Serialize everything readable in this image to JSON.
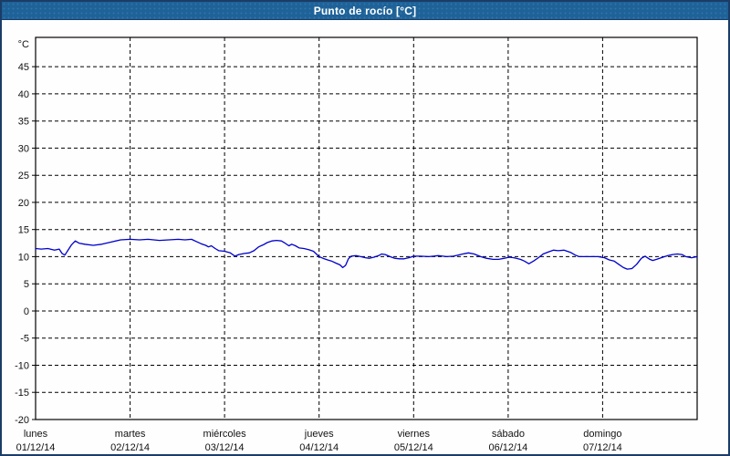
{
  "window": {
    "title": "Punto de rocío [°C]"
  },
  "colors": {
    "title_bar": "#1E6298",
    "title_text": "#FFFFFF",
    "frame_border": "#1B3C66",
    "plot_background": "#FDFEFD",
    "plot_border": "#000000",
    "grid": "#000000",
    "axis_text": "#111111",
    "series_line": "#0000CC"
  },
  "chart_data": {
    "type": "line",
    "title": "Punto de rocío [°C]",
    "unit_label": "°C",
    "ylabel": "°C",
    "ylim": [
      -20,
      50.4
    ],
    "y_ticks": [
      45,
      40,
      35,
      30,
      25,
      20,
      15,
      10,
      5,
      0,
      -5,
      -10,
      -15,
      -20
    ],
    "grid": "dashed",
    "legend_position": "none",
    "xlim_days": [
      0,
      7
    ],
    "x_categories": [
      {
        "name": "lunes",
        "date": "01/12/14"
      },
      {
        "name": "martes",
        "date": "02/12/14"
      },
      {
        "name": "miércoles",
        "date": "03/12/14"
      },
      {
        "name": "jueves",
        "date": "04/12/14"
      },
      {
        "name": "viernes",
        "date": "05/12/14"
      },
      {
        "name": "sábado",
        "date": "06/12/14"
      },
      {
        "name": "domingo",
        "date": "07/12/14"
      }
    ],
    "series": [
      {
        "name": "Punto de rocío [°C]",
        "color": "#0000CC",
        "points": [
          [
            0.0,
            11.5
          ],
          [
            0.06,
            11.4
          ],
          [
            0.13,
            11.5
          ],
          [
            0.2,
            11.2
          ],
          [
            0.25,
            11.4
          ],
          [
            0.28,
            10.6
          ],
          [
            0.31,
            10.3
          ],
          [
            0.34,
            11.1
          ],
          [
            0.38,
            12.2
          ],
          [
            0.42,
            12.9
          ],
          [
            0.46,
            12.5
          ],
          [
            0.52,
            12.3
          ],
          [
            0.61,
            12.1
          ],
          [
            0.7,
            12.3
          ],
          [
            0.8,
            12.7
          ],
          [
            0.9,
            13.1
          ],
          [
            1.0,
            13.2
          ],
          [
            1.1,
            13.1
          ],
          [
            1.19,
            13.2
          ],
          [
            1.31,
            13.0
          ],
          [
            1.41,
            13.1
          ],
          [
            1.51,
            13.2
          ],
          [
            1.58,
            13.1
          ],
          [
            1.65,
            13.2
          ],
          [
            1.7,
            12.8
          ],
          [
            1.75,
            12.4
          ],
          [
            1.8,
            12.1
          ],
          [
            1.83,
            11.8
          ],
          [
            1.86,
            12.0
          ],
          [
            1.9,
            11.5
          ],
          [
            1.94,
            11.1
          ],
          [
            2.0,
            11.0
          ],
          [
            2.06,
            10.7
          ],
          [
            2.11,
            10.1
          ],
          [
            2.15,
            10.4
          ],
          [
            2.21,
            10.6
          ],
          [
            2.26,
            10.7
          ],
          [
            2.31,
            11.1
          ],
          [
            2.36,
            11.8
          ],
          [
            2.41,
            12.2
          ],
          [
            2.45,
            12.6
          ],
          [
            2.5,
            12.9
          ],
          [
            2.55,
            13.0
          ],
          [
            2.6,
            12.9
          ],
          [
            2.64,
            12.5
          ],
          [
            2.68,
            12.0
          ],
          [
            2.71,
            12.3
          ],
          [
            2.75,
            12.0
          ],
          [
            2.79,
            11.6
          ],
          [
            2.84,
            11.5
          ],
          [
            2.89,
            11.3
          ],
          [
            2.94,
            11.0
          ],
          [
            3.0,
            10.0
          ],
          [
            3.04,
            9.7
          ],
          [
            3.09,
            9.4
          ],
          [
            3.13,
            9.2
          ],
          [
            3.18,
            8.8
          ],
          [
            3.22,
            8.5
          ],
          [
            3.25,
            8.0
          ],
          [
            3.28,
            8.4
          ],
          [
            3.31,
            9.6
          ],
          [
            3.34,
            10.1
          ],
          [
            3.39,
            10.2
          ],
          [
            3.44,
            10.0
          ],
          [
            3.49,
            9.8
          ],
          [
            3.53,
            9.7
          ],
          [
            3.58,
            9.9
          ],
          [
            3.63,
            10.2
          ],
          [
            3.66,
            10.5
          ],
          [
            3.7,
            10.4
          ],
          [
            3.75,
            10.0
          ],
          [
            3.8,
            9.7
          ],
          [
            3.85,
            9.6
          ],
          [
            3.9,
            9.6
          ],
          [
            3.95,
            9.8
          ],
          [
            4.0,
            10.1
          ],
          [
            4.07,
            10.1
          ],
          [
            4.16,
            10.0
          ],
          [
            4.21,
            10.1
          ],
          [
            4.26,
            10.2
          ],
          [
            4.31,
            10.1
          ],
          [
            4.35,
            10.0
          ],
          [
            4.42,
            10.1
          ],
          [
            4.47,
            10.3
          ],
          [
            4.52,
            10.5
          ],
          [
            4.58,
            10.7
          ],
          [
            4.64,
            10.5
          ],
          [
            4.71,
            10.0
          ],
          [
            4.77,
            9.7
          ],
          [
            4.84,
            9.5
          ],
          [
            4.9,
            9.5
          ],
          [
            4.96,
            9.7
          ],
          [
            5.01,
            9.9
          ],
          [
            5.06,
            9.8
          ],
          [
            5.13,
            9.5
          ],
          [
            5.17,
            9.2
          ],
          [
            5.22,
            8.7
          ],
          [
            5.27,
            9.2
          ],
          [
            5.32,
            9.8
          ],
          [
            5.37,
            10.5
          ],
          [
            5.43,
            10.9
          ],
          [
            5.48,
            11.2
          ],
          [
            5.53,
            11.1
          ],
          [
            5.59,
            11.2
          ],
          [
            5.66,
            10.8
          ],
          [
            5.71,
            10.3
          ],
          [
            5.75,
            10.0
          ],
          [
            5.85,
            10.0
          ],
          [
            5.95,
            10.0
          ],
          [
            6.02,
            9.8
          ],
          [
            6.07,
            9.4
          ],
          [
            6.12,
            9.2
          ],
          [
            6.17,
            8.6
          ],
          [
            6.22,
            8.0
          ],
          [
            6.26,
            7.7
          ],
          [
            6.31,
            7.8
          ],
          [
            6.36,
            8.6
          ],
          [
            6.41,
            9.7
          ],
          [
            6.45,
            10.1
          ],
          [
            6.5,
            9.5
          ],
          [
            6.53,
            9.3
          ],
          [
            6.57,
            9.5
          ],
          [
            6.62,
            9.8
          ],
          [
            6.69,
            10.2
          ],
          [
            6.74,
            10.4
          ],
          [
            6.79,
            10.5
          ],
          [
            6.84,
            10.4
          ],
          [
            6.88,
            10.0
          ],
          [
            6.94,
            9.8
          ],
          [
            7.0,
            10.0
          ]
        ]
      }
    ]
  }
}
